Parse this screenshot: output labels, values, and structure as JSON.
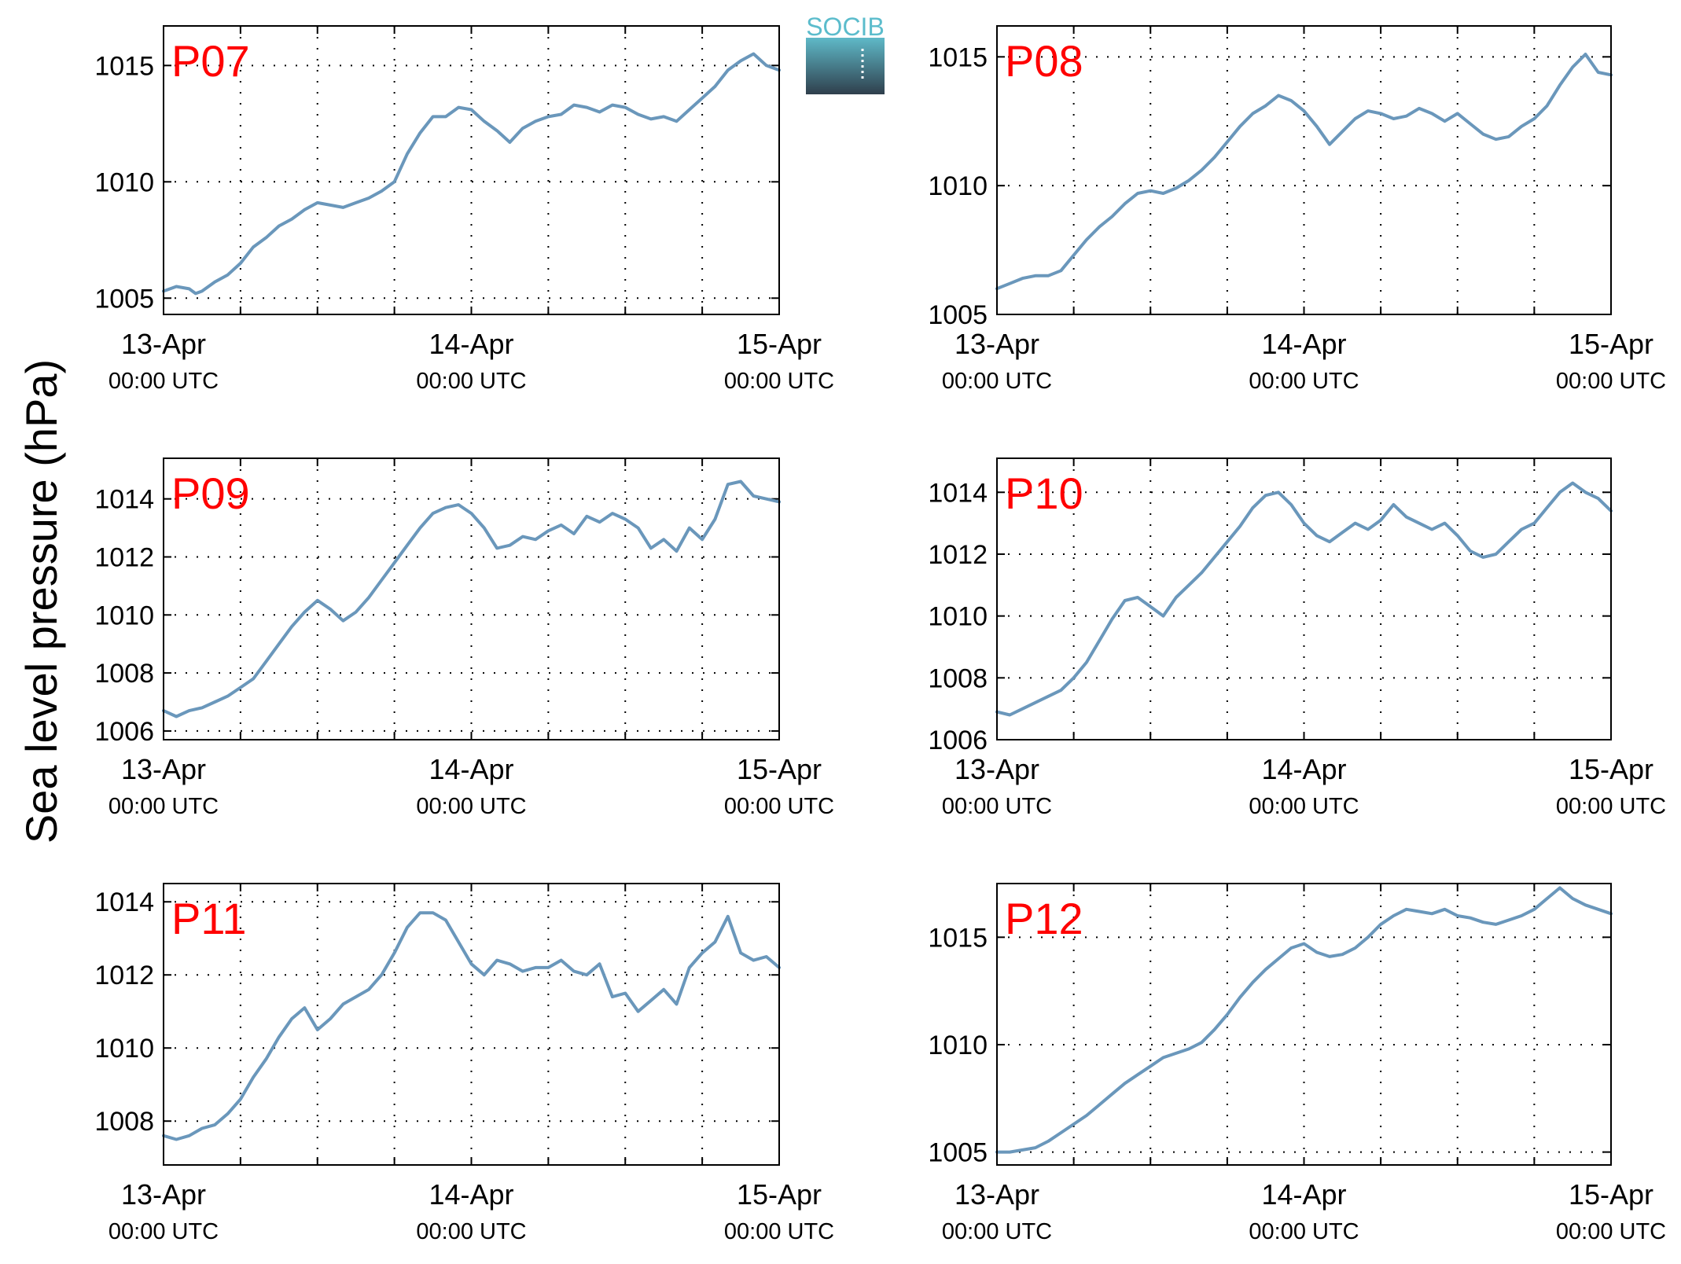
{
  "figure": {
    "ylabel": "Sea level pressure (hPa)",
    "line_color": "#6a97bb",
    "station_label_color": "#ff0000",
    "logo": {
      "text": "SOCIB",
      "text_color": "#5bbccc",
      "gradient_top": "#5fb9c8",
      "gradient_bottom": "#2f3f4c"
    }
  },
  "chart_data": [
    {
      "type": "line",
      "station": "P07",
      "xlim": [
        0,
        48
      ],
      "ylim": [
        1004.3,
        1016.7
      ],
      "grid": true,
      "x_ticks": [
        {
          "x": 0,
          "day": "13-Apr",
          "time": "00:00 UTC"
        },
        {
          "x": 24,
          "day": "14-Apr",
          "time": "00:00 UTC"
        },
        {
          "x": 48,
          "day": "15-Apr",
          "time": "00:00 UTC"
        }
      ],
      "y_ticks": [
        1005,
        1010,
        1015
      ],
      "series": [
        {
          "x_unit": "hours since 13-Apr 00:00 UTC",
          "x": [
            0,
            1,
            2,
            2.5,
            3,
            4,
            5,
            6,
            7,
            8,
            9,
            10,
            11,
            12,
            13,
            14,
            15,
            16,
            17,
            18,
            19,
            20,
            21,
            22,
            23,
            24,
            25,
            26,
            27,
            28,
            29,
            30,
            31,
            32,
            33,
            34,
            35,
            36,
            37,
            38,
            39,
            40,
            41,
            42,
            43,
            44,
            45,
            46,
            47,
            48
          ],
          "y": [
            1005.3,
            1005.5,
            1005.4,
            1005.2,
            1005.3,
            1005.7,
            1006.0,
            1006.5,
            1007.2,
            1007.6,
            1008.1,
            1008.4,
            1008.8,
            1009.1,
            1009.0,
            1008.9,
            1009.1,
            1009.3,
            1009.6,
            1010.0,
            1011.2,
            1012.1,
            1012.8,
            1012.8,
            1013.2,
            1013.1,
            1012.6,
            1012.2,
            1011.7,
            1012.3,
            1012.6,
            1012.8,
            1012.9,
            1013.3,
            1013.2,
            1013.0,
            1013.3,
            1013.2,
            1012.9,
            1012.7,
            1012.8,
            1012.6,
            1013.1,
            1013.6,
            1014.1,
            1014.8,
            1015.2,
            1015.5,
            1015.0,
            1014.8
          ]
        }
      ]
    },
    {
      "type": "line",
      "station": "P08",
      "xlim": [
        0,
        48
      ],
      "ylim": [
        1005,
        1016.2
      ],
      "grid": true,
      "x_ticks": [
        {
          "x": 0,
          "day": "13-Apr",
          "time": "00:00 UTC"
        },
        {
          "x": 24,
          "day": "14-Apr",
          "time": "00:00 UTC"
        },
        {
          "x": 48,
          "day": "15-Apr",
          "time": "00:00 UTC"
        }
      ],
      "y_ticks": [
        1005,
        1010,
        1015
      ],
      "series": [
        {
          "x_unit": "hours since 13-Apr 00:00 UTC",
          "x": [
            0,
            1,
            2,
            3,
            4,
            5,
            6,
            7,
            8,
            9,
            10,
            11,
            12,
            13,
            14,
            15,
            16,
            17,
            18,
            19,
            20,
            21,
            22,
            23,
            24,
            25,
            26,
            27,
            28,
            29,
            30,
            31,
            32,
            33,
            34,
            35,
            36,
            37,
            38,
            39,
            40,
            41,
            42,
            43,
            44,
            45,
            46,
            47,
            48
          ],
          "y": [
            1006.0,
            1006.2,
            1006.4,
            1006.5,
            1006.5,
            1006.7,
            1007.3,
            1007.9,
            1008.4,
            1008.8,
            1009.3,
            1009.7,
            1009.8,
            1009.7,
            1009.9,
            1010.2,
            1010.6,
            1011.1,
            1011.7,
            1012.3,
            1012.8,
            1013.1,
            1013.5,
            1013.3,
            1012.9,
            1012.3,
            1011.6,
            1012.1,
            1012.6,
            1012.9,
            1012.8,
            1012.6,
            1012.7,
            1013.0,
            1012.8,
            1012.5,
            1012.8,
            1012.4,
            1012.0,
            1011.8,
            1011.9,
            1012.3,
            1012.6,
            1013.1,
            1013.9,
            1014.6,
            1015.1,
            1014.4,
            1014.3
          ]
        }
      ]
    },
    {
      "type": "line",
      "station": "P09",
      "xlim": [
        0,
        48
      ],
      "ylim": [
        1005.7,
        1015.4
      ],
      "grid": true,
      "x_ticks": [
        {
          "x": 0,
          "day": "13-Apr",
          "time": "00:00 UTC"
        },
        {
          "x": 24,
          "day": "14-Apr",
          "time": "00:00 UTC"
        },
        {
          "x": 48,
          "day": "15-Apr",
          "time": "00:00 UTC"
        }
      ],
      "y_ticks": [
        1006,
        1008,
        1010,
        1012,
        1014
      ],
      "series": [
        {
          "x_unit": "hours since 13-Apr 00:00 UTC",
          "x": [
            0,
            1,
            2,
            3,
            4,
            5,
            6,
            7,
            8,
            9,
            10,
            11,
            12,
            13,
            14,
            15,
            16,
            17,
            18,
            19,
            20,
            21,
            22,
            23,
            24,
            25,
            26,
            27,
            28,
            29,
            30,
            31,
            32,
            33,
            34,
            35,
            36,
            37,
            38,
            39,
            40,
            41,
            42,
            43,
            44,
            45,
            46,
            47,
            48
          ],
          "y": [
            1006.7,
            1006.5,
            1006.7,
            1006.8,
            1007.0,
            1007.2,
            1007.5,
            1007.8,
            1008.4,
            1009.0,
            1009.6,
            1010.1,
            1010.5,
            1010.2,
            1009.8,
            1010.1,
            1010.6,
            1011.2,
            1011.8,
            1012.4,
            1013.0,
            1013.5,
            1013.7,
            1013.8,
            1013.5,
            1013.0,
            1012.3,
            1012.4,
            1012.7,
            1012.6,
            1012.9,
            1013.1,
            1012.8,
            1013.4,
            1013.2,
            1013.5,
            1013.3,
            1013.0,
            1012.3,
            1012.6,
            1012.2,
            1013.0,
            1012.6,
            1013.3,
            1014.5,
            1014.6,
            1014.1,
            1014.0,
            1013.9
          ]
        }
      ]
    },
    {
      "type": "line",
      "station": "P10",
      "xlim": [
        0,
        48
      ],
      "ylim": [
        1006,
        1015.1
      ],
      "grid": true,
      "x_ticks": [
        {
          "x": 0,
          "day": "13-Apr",
          "time": "00:00 UTC"
        },
        {
          "x": 24,
          "day": "14-Apr",
          "time": "00:00 UTC"
        },
        {
          "x": 48,
          "day": "15-Apr",
          "time": "00:00 UTC"
        }
      ],
      "y_ticks": [
        1006,
        1008,
        1010,
        1012,
        1014
      ],
      "series": [
        {
          "x_unit": "hours since 13-Apr 00:00 UTC",
          "x": [
            0,
            1,
            2,
            3,
            4,
            5,
            6,
            7,
            8,
            9,
            10,
            11,
            12,
            13,
            14,
            15,
            16,
            17,
            18,
            19,
            20,
            21,
            22,
            23,
            24,
            25,
            26,
            27,
            28,
            29,
            30,
            31,
            32,
            33,
            34,
            35,
            36,
            37,
            38,
            39,
            40,
            41,
            42,
            43,
            44,
            45,
            46,
            47,
            48
          ],
          "y": [
            1006.9,
            1006.8,
            1007.0,
            1007.2,
            1007.4,
            1007.6,
            1008.0,
            1008.5,
            1009.2,
            1009.9,
            1010.5,
            1010.6,
            1010.3,
            1010.0,
            1010.6,
            1011.0,
            1011.4,
            1011.9,
            1012.4,
            1012.9,
            1013.5,
            1013.9,
            1014.0,
            1013.6,
            1013.0,
            1012.6,
            1012.4,
            1012.7,
            1013.0,
            1012.8,
            1013.1,
            1013.6,
            1013.2,
            1013.0,
            1012.8,
            1013.0,
            1012.6,
            1012.1,
            1011.9,
            1012.0,
            1012.4,
            1012.8,
            1013.0,
            1013.5,
            1014.0,
            1014.3,
            1014.0,
            1013.8,
            1013.4
          ]
        }
      ]
    },
    {
      "type": "line",
      "station": "P11",
      "xlim": [
        0,
        48
      ],
      "ylim": [
        1006.8,
        1014.5
      ],
      "grid": true,
      "x_ticks": [
        {
          "x": 0,
          "day": "13-Apr",
          "time": "00:00 UTC"
        },
        {
          "x": 24,
          "day": "14-Apr",
          "time": "00:00 UTC"
        },
        {
          "x": 48,
          "day": "15-Apr",
          "time": "00:00 UTC"
        }
      ],
      "y_ticks": [
        1008,
        1010,
        1012,
        1014
      ],
      "series": [
        {
          "x_unit": "hours since 13-Apr 00:00 UTC",
          "x": [
            0,
            1,
            2,
            3,
            4,
            5,
            6,
            7,
            8,
            9,
            10,
            11,
            12,
            13,
            14,
            15,
            16,
            17,
            18,
            19,
            20,
            21,
            22,
            23,
            24,
            25,
            26,
            27,
            28,
            29,
            30,
            31,
            32,
            33,
            34,
            35,
            36,
            37,
            38,
            39,
            40,
            41,
            42,
            43,
            44,
            45,
            46,
            47,
            48
          ],
          "y": [
            1007.6,
            1007.5,
            1007.6,
            1007.8,
            1007.9,
            1008.2,
            1008.6,
            1009.2,
            1009.7,
            1010.3,
            1010.8,
            1011.1,
            1010.5,
            1010.8,
            1011.2,
            1011.4,
            1011.6,
            1012.0,
            1012.6,
            1013.3,
            1013.7,
            1013.7,
            1013.5,
            1012.9,
            1012.3,
            1012.0,
            1012.4,
            1012.3,
            1012.1,
            1012.2,
            1012.2,
            1012.4,
            1012.1,
            1012.0,
            1012.3,
            1011.4,
            1011.5,
            1011.0,
            1011.3,
            1011.6,
            1011.2,
            1012.2,
            1012.6,
            1012.9,
            1013.6,
            1012.6,
            1012.4,
            1012.5,
            1012.2
          ]
        }
      ]
    },
    {
      "type": "line",
      "station": "P12",
      "xlim": [
        0,
        48
      ],
      "ylim": [
        1004.4,
        1017.5
      ],
      "grid": true,
      "x_ticks": [
        {
          "x": 0,
          "day": "13-Apr",
          "time": "00:00 UTC"
        },
        {
          "x": 24,
          "day": "14-Apr",
          "time": "00:00 UTC"
        },
        {
          "x": 48,
          "day": "15-Apr",
          "time": "00:00 UTC"
        }
      ],
      "y_ticks": [
        1005,
        1010,
        1015
      ],
      "series": [
        {
          "x_unit": "hours since 13-Apr 00:00 UTC",
          "x": [
            0,
            1,
            2,
            3,
            4,
            5,
            6,
            7,
            8,
            9,
            10,
            11,
            12,
            13,
            14,
            15,
            16,
            17,
            18,
            19,
            20,
            21,
            22,
            23,
            24,
            25,
            26,
            27,
            28,
            29,
            30,
            31,
            32,
            33,
            34,
            35,
            36,
            37,
            38,
            39,
            40,
            41,
            42,
            43,
            44,
            45,
            46,
            47,
            48
          ],
          "y": [
            1005.0,
            1005.0,
            1005.1,
            1005.2,
            1005.5,
            1005.9,
            1006.3,
            1006.7,
            1007.2,
            1007.7,
            1008.2,
            1008.6,
            1009.0,
            1009.4,
            1009.6,
            1009.8,
            1010.1,
            1010.7,
            1011.4,
            1012.2,
            1012.9,
            1013.5,
            1014.0,
            1014.5,
            1014.7,
            1014.3,
            1014.1,
            1014.2,
            1014.5,
            1015.0,
            1015.6,
            1016.0,
            1016.3,
            1016.2,
            1016.1,
            1016.3,
            1016.0,
            1015.9,
            1015.7,
            1015.6,
            1015.8,
            1016.0,
            1016.3,
            1016.8,
            1017.3,
            1016.8,
            1016.5,
            1016.3,
            1016.1
          ]
        }
      ]
    }
  ]
}
